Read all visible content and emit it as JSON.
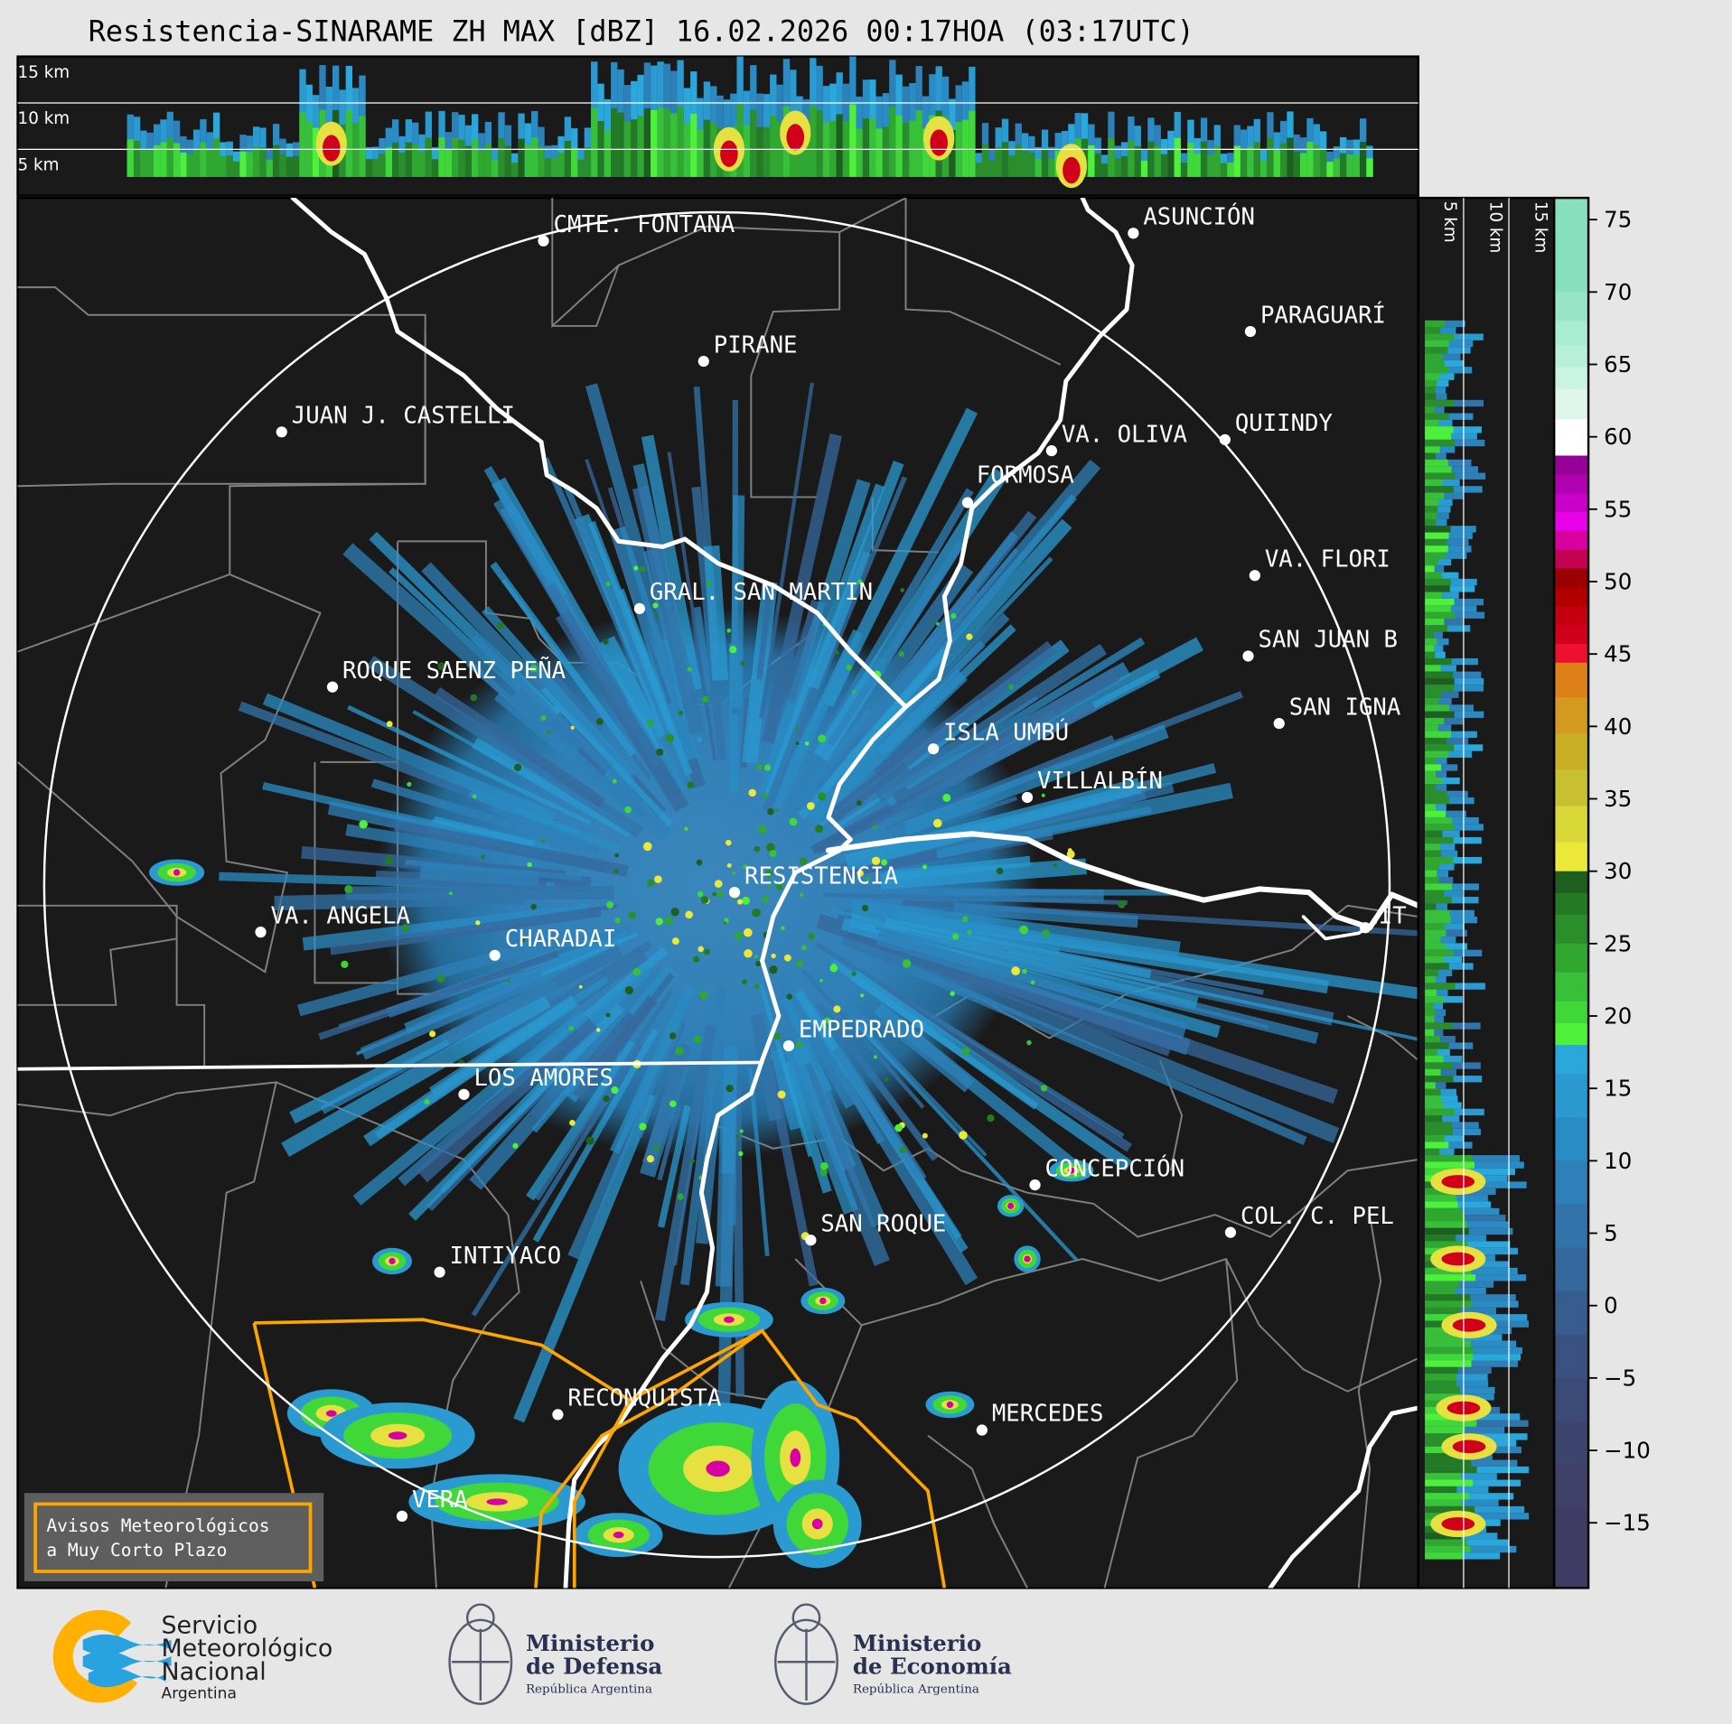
{
  "title": "Resistencia-SINARAME ZH MAX [dBZ] 16.02.2026 00:17HOA (03:17UTC)",
  "top_panel": {
    "height_labels": [
      "15 km",
      "10 km",
      "5 km"
    ]
  },
  "side_panel": {
    "height_labels": [
      "5 km",
      "10 km",
      "15 km"
    ]
  },
  "colorbar": {
    "unit": "dBZ",
    "range": [
      -19.5,
      76.5
    ],
    "ticks": [
      "75",
      "70",
      "65",
      "60",
      "55",
      "50",
      "45",
      "40",
      "35",
      "30",
      "25",
      "20",
      "15",
      "10",
      "5",
      "0",
      "−5",
      "−10",
      "−15"
    ],
    "tick_values": [
      75,
      70,
      65,
      60,
      55,
      50,
      45,
      40,
      35,
      30,
      25,
      20,
      15,
      10,
      5,
      0,
      -5,
      -10,
      -15
    ],
    "bands": [
      [
        70,
        76.5,
        "#88dfbd"
      ],
      [
        68,
        70,
        "#97e5c6"
      ],
      [
        66.3,
        68,
        "#a8edd2"
      ],
      [
        64.8,
        66.3,
        "#b8efd9"
      ],
      [
        63.3,
        64.8,
        "#c9f3e2"
      ],
      [
        61.2,
        63.3,
        "#dff6ed"
      ],
      [
        58.7,
        61.2,
        "#ffffff"
      ],
      [
        57.4,
        58.7,
        "#960096"
      ],
      [
        56.1,
        57.4,
        "#b000b0"
      ],
      [
        54.8,
        56.1,
        "#c800c8"
      ],
      [
        53.5,
        54.8,
        "#e800e8"
      ],
      [
        52.2,
        53.5,
        "#d800a0"
      ],
      [
        50.9,
        52.2,
        "#c40050"
      ],
      [
        49.6,
        50.9,
        "#9b0000"
      ],
      [
        48.3,
        49.6,
        "#b20000"
      ],
      [
        47,
        48.3,
        "#c40010"
      ],
      [
        45.7,
        47,
        "#d0001a"
      ],
      [
        44.4,
        45.7,
        "#ee1030"
      ],
      [
        42,
        44.4,
        "#dd8018"
      ],
      [
        39.5,
        42,
        "#d49a20"
      ],
      [
        37,
        39.5,
        "#c8b025"
      ],
      [
        34.5,
        37,
        "#c8c030"
      ],
      [
        32,
        34.5,
        "#d8d838"
      ],
      [
        30,
        32,
        "#ece838"
      ],
      [
        28.5,
        30,
        "#1e5e1e"
      ],
      [
        27,
        28.5,
        "#247a24"
      ],
      [
        25,
        27,
        "#2a8e2a"
      ],
      [
        23,
        25,
        "#30a830"
      ],
      [
        21,
        23,
        "#38c038"
      ],
      [
        19.5,
        21,
        "#40d838"
      ],
      [
        18,
        19.5,
        "#4ef03a"
      ],
      [
        16,
        18,
        "#2aa8dc"
      ],
      [
        13,
        16,
        "#2a9ad0"
      ],
      [
        10,
        13,
        "#2a8cc4"
      ],
      [
        7,
        10,
        "#2d80b8"
      ],
      [
        4,
        7,
        "#3274aa"
      ],
      [
        1,
        4,
        "#35689c"
      ],
      [
        -2,
        1,
        "#385c8e"
      ],
      [
        -5,
        -2,
        "#3a5282"
      ],
      [
        -8,
        -5,
        "#3c4a78"
      ],
      [
        -11,
        -8,
        "#3d446e"
      ],
      [
        -14,
        -11,
        "#3e4068"
      ],
      [
        -19.5,
        -14,
        "#3e3c62"
      ]
    ]
  },
  "map": {
    "range_ring": "white",
    "cities": [
      "CMTE. FONTANA",
      "ASUNCIÓN",
      "PIRANE",
      "PARAGUARÍ",
      "JUAN J. CASTELLI",
      "VA. OLIVA",
      "QUIINDY",
      "FORMOSA",
      "VA. FLORI",
      "GRAL. SAN MARTIN",
      "SAN JUAN B",
      "ROQUE SAENZ PEÑA",
      "SAN IGNA",
      "ISLA UMBÚ",
      "VILLALBÍN",
      "RESISTENCIA",
      "IT",
      "VA. ANGELA",
      "CHARADAI",
      "EMPEDRADO",
      "LOS AMORES",
      "CONCEPCIÓN",
      "COL. C. PEL",
      "SAN ROQUE",
      "INTIYACO",
      "RECONQUISTA",
      "MERCEDES",
      "VERA"
    ],
    "warning_button": {
      "line1": "Avisos Meteorológicos",
      "line2": "a Muy Corto Plazo"
    },
    "colors": {
      "background": "#1a1a1a",
      "rivers": "#ffffff",
      "borders": "#808080",
      "warning_area": "#ffa500"
    }
  },
  "footer": {
    "smn": {
      "line1": "Servicio",
      "line2": "Meteorológico",
      "line3": "Nacional",
      "line4": "Argentina"
    },
    "defensa": {
      "line1": "Ministerio",
      "line2": "de Defensa",
      "line3": "República Argentina"
    },
    "economia": {
      "line1": "Ministerio",
      "line2": "de Economía",
      "line3": "República Argentina"
    }
  }
}
